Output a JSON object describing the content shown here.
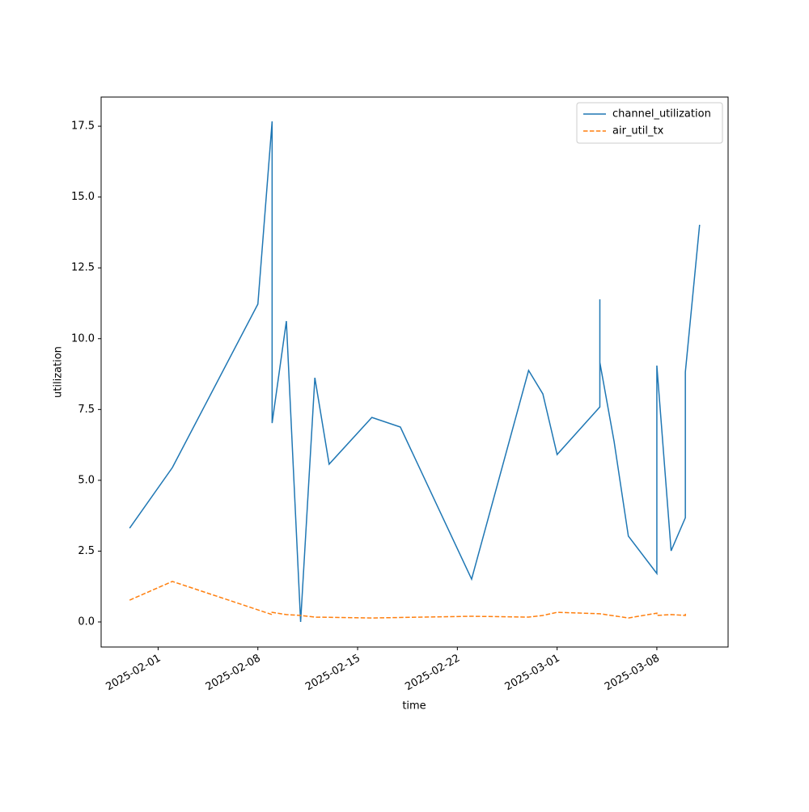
{
  "chart_data": {
    "type": "line",
    "xlabel": "time",
    "ylabel": "utilization",
    "xlim": [
      "2025-01-28",
      "2025-03-13"
    ],
    "xticks": [
      "2025-02-01",
      "2025-02-08",
      "2025-02-15",
      "2025-02-22",
      "2025-03-01",
      "2025-03-08"
    ],
    "ylim": [
      -0.885,
      18.53
    ],
    "yticks": [
      {
        "value": 0,
        "label": "0.0"
      },
      {
        "value": 2.5,
        "label": "2.5"
      },
      {
        "value": 5,
        "label": "5.0"
      },
      {
        "value": 7.5,
        "label": "7.5"
      },
      {
        "value": 10,
        "label": "10.0"
      },
      {
        "value": 12.5,
        "label": "12.5"
      },
      {
        "value": 15,
        "label": "15.0"
      },
      {
        "value": 17.5,
        "label": "17.5"
      }
    ],
    "legend": "upper right",
    "series": [
      {
        "name": "channel_utilization",
        "color": "#1f77b4",
        "linestyle": "solid",
        "x": [
          "2025-01-30",
          "2025-02-02",
          "2025-02-08",
          "2025-02-09",
          "2025-02-09",
          "2025-02-10",
          "2025-02-11",
          "2025-02-12",
          "2025-02-13",
          "2025-02-16",
          "2025-02-18",
          "2025-02-23",
          "2025-02-27",
          "2025-02-28",
          "2025-03-01",
          "2025-03-04",
          "2025-03-04",
          "2025-03-04",
          "2025-03-05",
          "2025-03-06",
          "2025-03-08",
          "2025-03-08",
          "2025-03-09",
          "2025-03-10",
          "2025-03-10",
          "2025-03-10",
          "2025-03-10",
          "2025-03-11"
        ],
        "values": [
          3.31,
          5.45,
          11.22,
          17.67,
          7.02,
          10.62,
          0.0,
          8.62,
          5.57,
          7.22,
          6.88,
          1.51,
          8.88,
          8.05,
          5.91,
          7.59,
          11.39,
          9.16,
          6.37,
          3.03,
          1.71,
          9.05,
          2.51,
          3.68,
          4.62,
          4.51,
          8.82,
          14.02
        ]
      },
      {
        "name": "air_util_tx",
        "color": "#ff7f0e",
        "linestyle": "dashed",
        "x": [
          "2025-01-30",
          "2025-02-02",
          "2025-02-09",
          "2025-02-09",
          "2025-02-10",
          "2025-02-11",
          "2025-02-12",
          "2025-02-16",
          "2025-02-23",
          "2025-02-27",
          "2025-02-28",
          "2025-03-01",
          "2025-03-04",
          "2025-03-04",
          "2025-03-06",
          "2025-03-08",
          "2025-03-08",
          "2025-03-09",
          "2025-03-10",
          "2025-03-10"
        ],
        "values": [
          0.77,
          1.43,
          0.26,
          0.34,
          0.26,
          0.23,
          0.17,
          0.14,
          0.2,
          0.17,
          0.23,
          0.34,
          0.29,
          0.29,
          0.14,
          0.31,
          0.23,
          0.26,
          0.23,
          0.29
        ]
      }
    ]
  }
}
